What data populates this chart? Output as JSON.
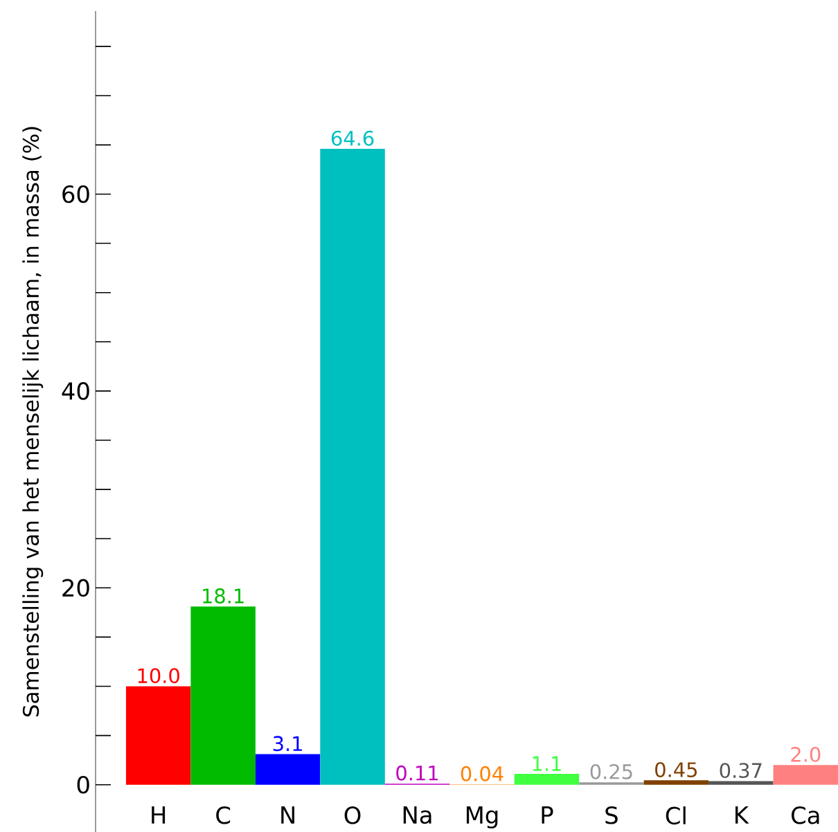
{
  "chart_data": {
    "type": "bar",
    "ylabel": "Samenstelling van het menselijk lichaam, in massa (%)",
    "categories": [
      "H",
      "C",
      "N",
      "O",
      "Na",
      "Mg",
      "P",
      "S",
      "Cl",
      "K",
      "Ca"
    ],
    "values": [
      10.0,
      18.1,
      3.1,
      64.6,
      0.11,
      0.04,
      1.1,
      0.25,
      0.45,
      0.37,
      2.0
    ],
    "value_labels": [
      "10.0",
      "18.1",
      "3.1",
      "64.6",
      "0.11",
      "0.04",
      "1.1",
      "0.25",
      "0.45",
      "0.37",
      "2.0"
    ],
    "colors": [
      "#ff0000",
      "#00bb00",
      "#0000ff",
      "#00bfbf",
      "#bf00bf",
      "#ff8000",
      "#40ff40",
      "#999999",
      "#804000",
      "#555555",
      "#ff8080"
    ],
    "ylim": [
      -4.8,
      78.6
    ],
    "yticks": [
      0,
      {
        "value": 5,
        "label": null
      },
      {
        "value": 10,
        "label": null
      },
      {
        "value": 15,
        "label": null
      },
      20,
      {
        "value": 25,
        "label": null
      },
      {
        "value": 30,
        "label": null
      },
      {
        "value": 35,
        "label": null
      },
      40,
      {
        "value": 45,
        "label": null
      },
      {
        "value": 50,
        "label": null
      },
      {
        "value": 55,
        "label": null
      },
      60,
      {
        "value": 65,
        "label": null
      },
      {
        "value": 70,
        "label": null
      },
      {
        "value": 75,
        "label": null
      }
    ],
    "grid": false
  }
}
